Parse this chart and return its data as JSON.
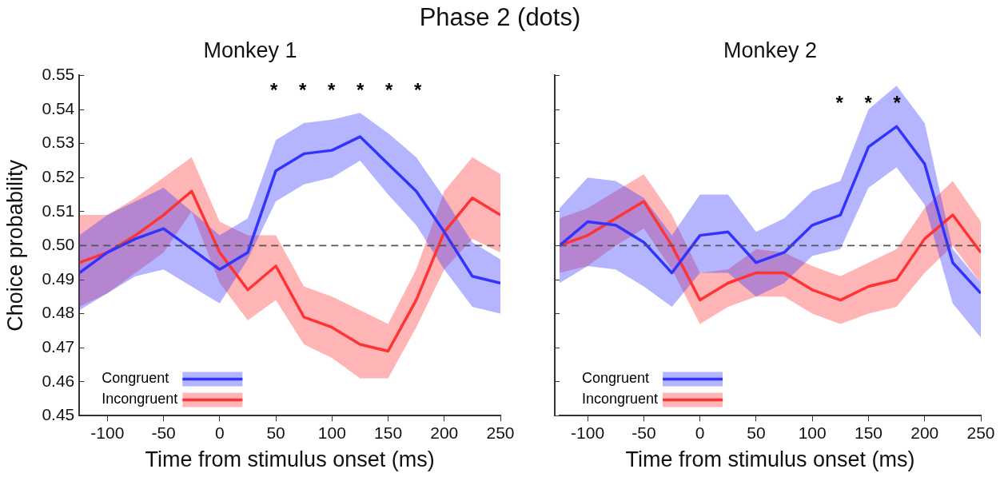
{
  "chart_data": [
    {
      "type": "line",
      "title": "Phase 2 (dots)",
      "subtitle": "Monkey 1",
      "xlabel": "Time from stimulus onset (ms)",
      "ylabel": "Choice probability",
      "x": [
        -125,
        -100,
        -75,
        -50,
        -25,
        0,
        25,
        50,
        75,
        100,
        125,
        150,
        175,
        200,
        225,
        250
      ],
      "series": [
        {
          "name": "Congruent",
          "color": "#3333ff",
          "values": [
            0.492,
            0.498,
            0.502,
            0.505,
            0.499,
            0.493,
            0.498,
            0.522,
            0.527,
            0.528,
            0.532,
            0.524,
            0.516,
            0.504,
            0.491,
            0.489
          ],
          "lower": [
            0.481,
            0.486,
            0.491,
            0.493,
            0.488,
            0.483,
            0.496,
            0.513,
            0.518,
            0.52,
            0.525,
            0.515,
            0.506,
            0.493,
            0.482,
            0.48
          ],
          "upper": [
            0.503,
            0.509,
            0.513,
            0.517,
            0.51,
            0.503,
            0.508,
            0.531,
            0.536,
            0.537,
            0.539,
            0.533,
            0.526,
            0.514,
            0.501,
            0.496
          ]
        },
        {
          "name": "Incongruent",
          "color": "#ff3333",
          "values": [
            0.495,
            0.498,
            0.503,
            0.509,
            0.516,
            0.498,
            0.487,
            0.494,
            0.479,
            0.476,
            0.471,
            0.469,
            0.484,
            0.504,
            0.514,
            0.509
          ],
          "lower": [
            0.482,
            0.486,
            0.492,
            0.498,
            0.51,
            0.489,
            0.478,
            0.484,
            0.471,
            0.467,
            0.461,
            0.461,
            0.476,
            0.493,
            0.502,
            0.498
          ],
          "upper": [
            0.509,
            0.509,
            0.514,
            0.52,
            0.526,
            0.507,
            0.503,
            0.503,
            0.488,
            0.485,
            0.481,
            0.477,
            0.493,
            0.516,
            0.526,
            0.521
          ]
        }
      ],
      "xlim": [
        -125,
        250
      ],
      "xticks": [
        -100,
        -50,
        0,
        50,
        100,
        150,
        200,
        250
      ],
      "ylim": [
        0.45,
        0.55
      ],
      "yticks": [
        0.45,
        0.46,
        0.47,
        0.48,
        0.49,
        {
          "value": 0.5,
          "label": "0.50"
        },
        0.51,
        0.52,
        0.53,
        0.54,
        0.55
      ],
      "ref_lines": [
        {
          "axis": "y",
          "value": 0.5,
          "color": "#555555",
          "line_style": "dashed"
        }
      ],
      "annotations": [
        "*",
        "*",
        "*",
        "*",
        "*",
        "*"
      ],
      "grid": false,
      "legend": "bottom left",
      "marker": "none",
      "line_style": "solid"
    },
    {
      "type": "line",
      "title": "Monkey 2",
      "xlabel": "Time from stimulus onset (ms)",
      "x": [
        -125,
        -100,
        -75,
        -50,
        -25,
        0,
        25,
        50,
        75,
        100,
        125,
        150,
        175,
        200,
        225,
        250
      ],
      "series": [
        {
          "name": "Congruent",
          "color": "#3333ff",
          "values": [
            0.5,
            0.507,
            0.506,
            0.501,
            0.492,
            0.503,
            0.504,
            0.495,
            0.498,
            0.506,
            0.509,
            0.529,
            0.535,
            0.524,
            0.495,
            0.486
          ],
          "lower": [
            0.489,
            0.494,
            0.493,
            0.488,
            0.482,
            0.492,
            0.492,
            0.485,
            0.489,
            0.497,
            0.499,
            0.517,
            0.523,
            0.512,
            0.483,
            0.473
          ],
          "upper": [
            0.511,
            0.52,
            0.519,
            0.514,
            0.503,
            0.515,
            0.515,
            0.504,
            0.508,
            0.516,
            0.519,
            0.54,
            0.547,
            0.536,
            0.499,
            0.489
          ]
        },
        {
          "name": "Incongruent",
          "color": "#ff3333",
          "values": [
            0.5,
            0.503,
            0.508,
            0.513,
            0.5,
            0.484,
            0.489,
            0.492,
            0.492,
            0.487,
            0.484,
            0.488,
            0.49,
            0.502,
            0.509,
            0.498
          ],
          "lower": [
            0.492,
            0.494,
            0.5,
            0.505,
            0.493,
            0.477,
            0.482,
            0.485,
            0.485,
            0.48,
            0.477,
            0.48,
            0.482,
            0.492,
            0.5,
            0.489
          ],
          "upper": [
            0.508,
            0.511,
            0.516,
            0.521,
            0.509,
            0.492,
            0.493,
            0.499,
            0.498,
            0.494,
            0.491,
            0.495,
            0.499,
            0.511,
            0.519,
            0.507
          ]
        }
      ],
      "xlim": [
        -125,
        250
      ],
      "xticks": [
        -100,
        -50,
        0,
        50,
        100,
        150,
        200,
        250
      ],
      "ylim": [
        0.45,
        0.55
      ],
      "yticks": [
        0.45,
        0.46,
        0.47,
        0.48,
        0.49,
        0.5,
        0.51,
        0.52,
        0.53,
        0.54,
        0.55
      ],
      "tick_labels": "x",
      "ref_lines": [
        {
          "axis": "y",
          "value": 0.5,
          "color": "#555555",
          "line_style": "dashed"
        }
      ],
      "annotations": [
        "*",
        "*",
        "*"
      ],
      "grid": false,
      "legend": "bottom left",
      "marker": "none",
      "line_style": "solid"
    }
  ]
}
